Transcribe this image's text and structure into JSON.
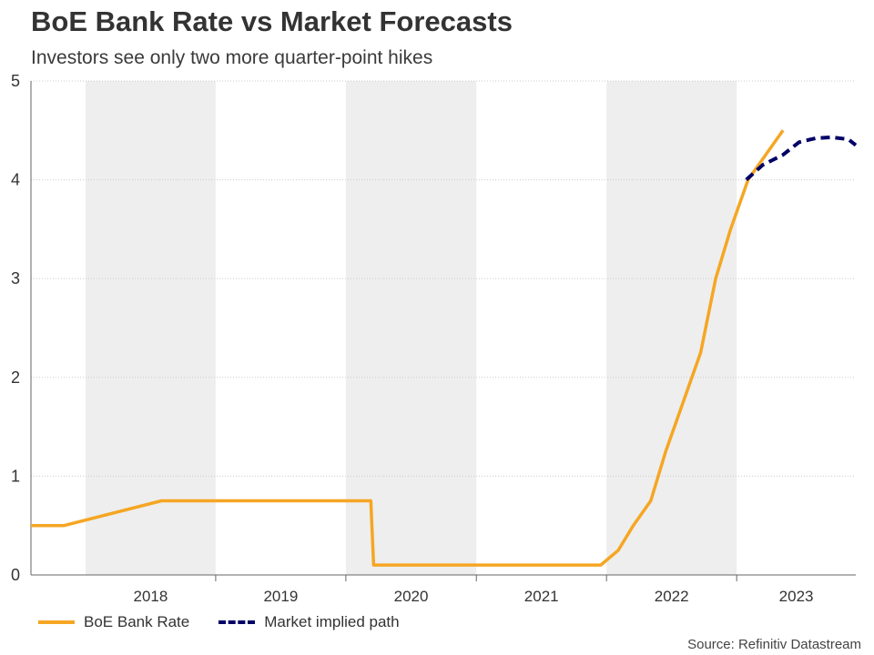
{
  "chart_data": {
    "type": "line",
    "title": "BoE Bank Rate vs Market Forecasts",
    "subtitle": "Investors see only two more quarter-point hikes",
    "xlabel": "",
    "ylabel": "",
    "ylim": [
      0,
      5
    ],
    "yticks": [
      "0",
      "1",
      "2",
      "3",
      "4",
      "5"
    ],
    "xlim": [
      "2017-08-01",
      "2023-12-01"
    ],
    "year_labels": [
      "2018",
      "2019",
      "2020",
      "2021",
      "2022",
      "2023"
    ],
    "shaded_years": [
      "2018",
      "2020",
      "2022"
    ],
    "grid": true,
    "legend_position": "bottom-left",
    "source": "Source: Refinitiv Datastream",
    "series": [
      {
        "name": "BoE Bank Rate",
        "color": "#f5a623",
        "style": "solid",
        "x": [
          "2017-08-01",
          "2017-11-02",
          "2018-08-02",
          "2020-03-11",
          "2020-03-19",
          "2021-12-16",
          "2022-02-03",
          "2022-03-17",
          "2022-05-05",
          "2022-06-16",
          "2022-08-04",
          "2022-09-22",
          "2022-11-03",
          "2022-12-15",
          "2023-02-02",
          "2023-03-23",
          "2023-05-11"
        ],
        "y": [
          0.5,
          0.5,
          0.75,
          0.75,
          0.1,
          0.1,
          0.25,
          0.5,
          0.75,
          1.25,
          1.75,
          2.25,
          3.0,
          3.5,
          4.0,
          4.25,
          4.5
        ]
      },
      {
        "name": "Market implied path",
        "color": "#000066",
        "style": "dashed",
        "x": [
          "2023-01-28",
          "2023-03-15",
          "2023-05-10",
          "2023-06-25",
          "2023-08-10",
          "2023-09-25",
          "2023-11-10",
          "2023-12-01"
        ],
        "y": [
          4.0,
          4.15,
          4.25,
          4.38,
          4.42,
          4.43,
          4.41,
          4.35
        ]
      }
    ]
  }
}
